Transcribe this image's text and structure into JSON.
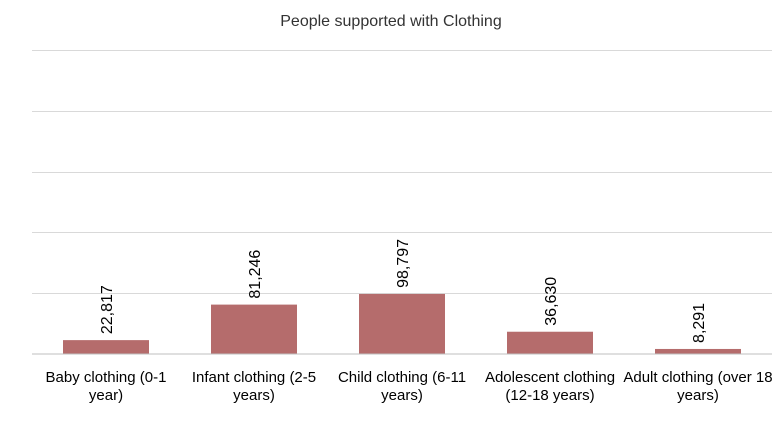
{
  "chart_data": {
    "type": "bar",
    "title": "People supported with Clothing",
    "categories": [
      "Baby clothing (0-1 year)",
      "Infant clothing (2-5 years)",
      "Child clothing (6-11 years)",
      "Adolescent clothing (12-18 years)",
      "Adult clothing (over 18 years)"
    ],
    "values": [
      22817,
      81246,
      98797,
      36630,
      8291
    ],
    "data_labels": [
      "22,817",
      "81,246",
      "98,797",
      "36,630",
      "8,291"
    ],
    "ylim": [
      0,
      500000
    ],
    "gridlines": true,
    "legend": "none",
    "bar_color": "#b56c6c"
  }
}
